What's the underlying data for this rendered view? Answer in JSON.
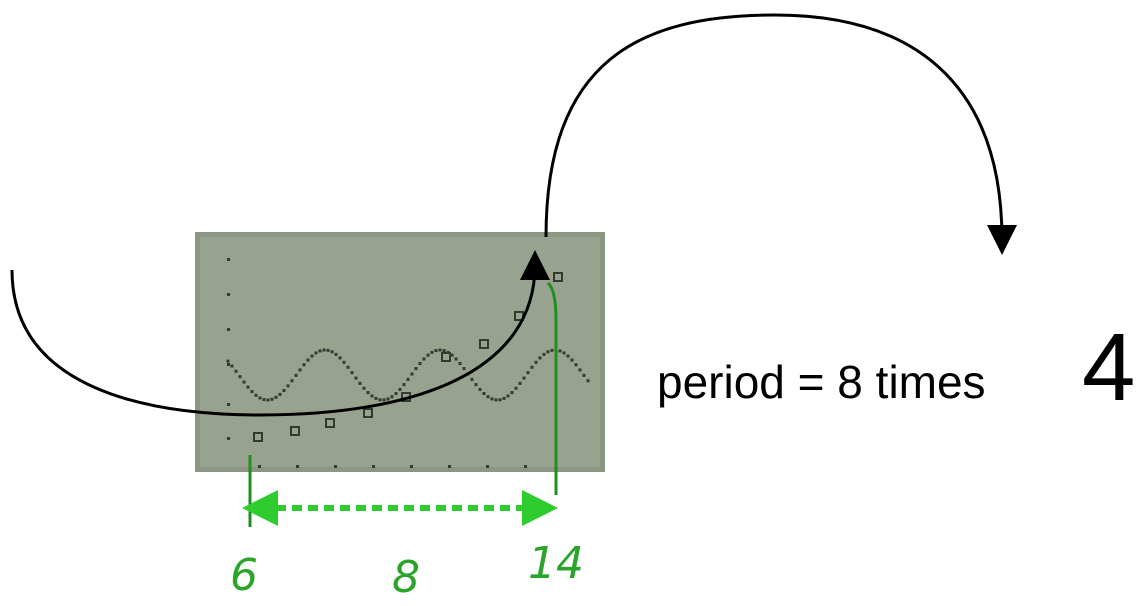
{
  "annotation": {
    "text": "period = 8 times",
    "big_number": "4"
  },
  "handwriting": {
    "left": "6",
    "middle": "8",
    "right": "14"
  }
}
